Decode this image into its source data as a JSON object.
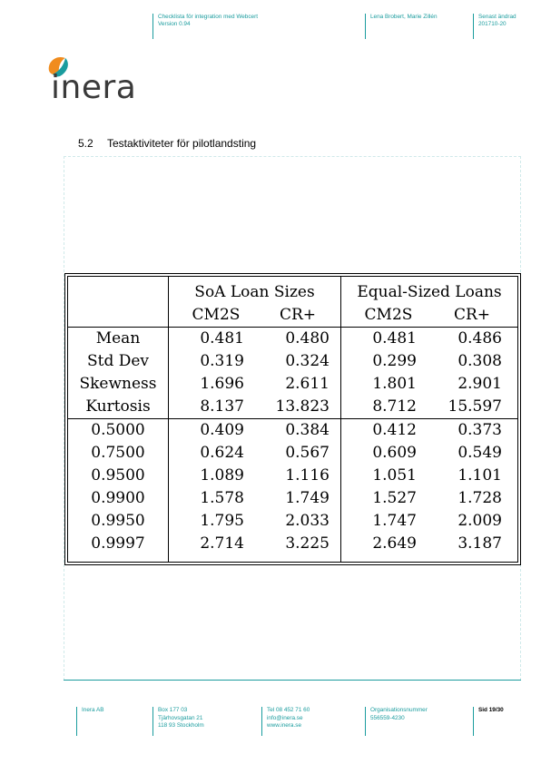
{
  "header": {
    "doc_title": "Checklista för integration med Webcert",
    "version": "Version 0.94",
    "authors": "Lena Brobert, Marie Zillén",
    "changed_label": "Senast ändrad",
    "changed_date": "201710-20"
  },
  "logo": {
    "text": "inera"
  },
  "section": {
    "number": "5.2",
    "title": "Testaktiviteter för pilotlandsting"
  },
  "table": {
    "group_headers": [
      "SoA Loan Sizes",
      "Equal-Sized Loans"
    ],
    "sub_headers": [
      "CM2S",
      "CR+",
      "CM2S",
      "CR+"
    ],
    "stats_rows": [
      {
        "label": "Mean",
        "values": [
          "0.481",
          "0.480",
          "0.481",
          "0.486"
        ]
      },
      {
        "label": "Std Dev",
        "values": [
          "0.319",
          "0.324",
          "0.299",
          "0.308"
        ]
      },
      {
        "label": "Skewness",
        "values": [
          "1.696",
          "2.611",
          "1.801",
          "2.901"
        ]
      },
      {
        "label": "Kurtosis",
        "values": [
          "8.137",
          "13.823",
          "8.712",
          "15.597"
        ]
      }
    ],
    "quantile_rows": [
      {
        "label": "0.5000",
        "values": [
          "0.409",
          "0.384",
          "0.412",
          "0.373"
        ]
      },
      {
        "label": "0.7500",
        "values": [
          "0.624",
          "0.567",
          "0.609",
          "0.549"
        ]
      },
      {
        "label": "0.9500",
        "values": [
          "1.089",
          "1.116",
          "1.051",
          "1.101"
        ]
      },
      {
        "label": "0.9900",
        "values": [
          "1.578",
          "1.749",
          "1.527",
          "1.728"
        ]
      },
      {
        "label": "0.9950",
        "values": [
          "1.795",
          "2.033",
          "1.747",
          "2.009"
        ]
      },
      {
        "label": "0.9997",
        "values": [
          "2.714",
          "3.225",
          "2.649",
          "3.187"
        ]
      }
    ]
  },
  "footer": {
    "company": "Inera AB",
    "address": [
      "Box 177 03",
      "Tjärhovsgatan 21",
      "118 93 Stockholm"
    ],
    "contact": [
      "Tel 08 452 71 60",
      "info@inera.se",
      "www.inera.se"
    ],
    "org_label": "Organisationsnummer",
    "org_number": "556559-4230",
    "page": "Sid 19/30"
  },
  "colors": {
    "accent": "#1a9c9e",
    "logo_orange": "#f08c1e",
    "logo_text": "#3a3a3a"
  }
}
